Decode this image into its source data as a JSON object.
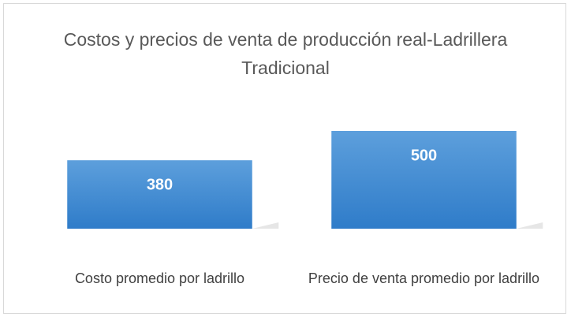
{
  "chart_data": {
    "type": "bar",
    "title": "Costos y precios de venta de producción real-Ladrillera Tradicional",
    "categories": [
      "Costo promedio por ladrillo",
      "Precio de venta promedio por ladrillo"
    ],
    "values": [
      380,
      500
    ],
    "color": "#4a8fd6",
    "ylim": [
      100,
      500
    ]
  }
}
